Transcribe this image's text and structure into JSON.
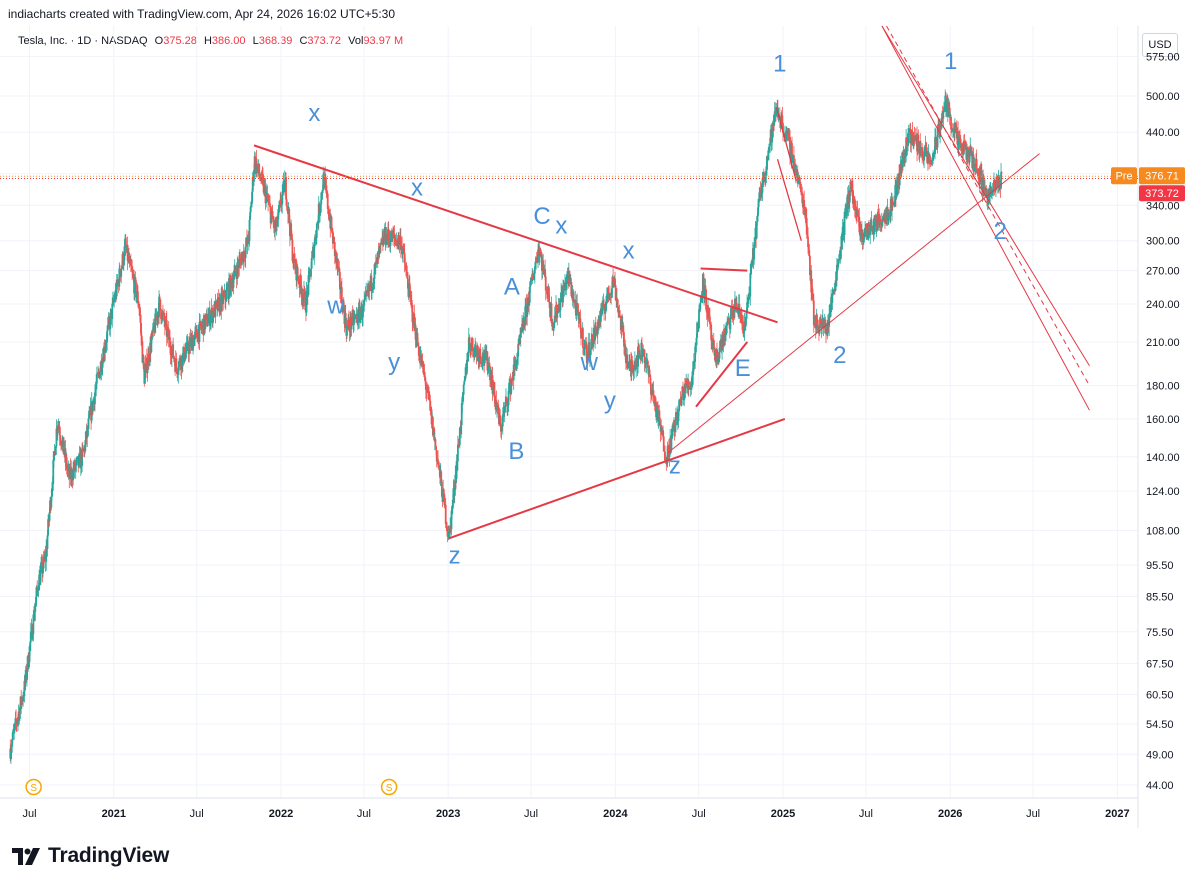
{
  "header": {
    "credit": "indiacharts created with TradingView.com, Apr 24, 2026 16:02 UTC+5:30",
    "symbol": "Tesla, Inc. · 1D · NASDAQ",
    "o_label": "O",
    "o_value": "375.28",
    "h_label": "H",
    "h_value": "386.00",
    "l_label": "L",
    "l_value": "368.39",
    "c_label": "C",
    "c_value": "373.72",
    "vol_label": "Vol",
    "vol_value": "93.97 M",
    "currency": "USD"
  },
  "brand": {
    "name": "TradingView",
    "logo_icon": "tradingview-logo-icon"
  },
  "colors": {
    "up": "#26a69a",
    "down": "#ef5350",
    "trendline": "#e53945",
    "label": "#4a90d9",
    "pre": "#f68a1f",
    "last": "#f23645"
  },
  "chart_data": {
    "type": "candlestick",
    "y_scale": "log",
    "ylim": [
      42,
      640
    ],
    "y_ticks": [
      "575.00",
      "500.00",
      "440.00",
      "380.00",
      "340.00",
      "300.00",
      "270.00",
      "240.00",
      "210.00",
      "180.00",
      "160.00",
      "140.00",
      "124.00",
      "108.00",
      "95.50",
      "85.50",
      "75.50",
      "67.50",
      "60.50",
      "54.50",
      "49.00",
      "44.00"
    ],
    "x_ticks": [
      "Jul",
      "2021",
      "Jul",
      "2022",
      "Jul",
      "2023",
      "Jul",
      "2024",
      "Jul",
      "2025",
      "Jul",
      "2026",
      "Jul",
      "2027"
    ],
    "price_tags": [
      {
        "label": "Pre",
        "value": "376.71"
      },
      {
        "label": "",
        "value": "373.72"
      }
    ],
    "price_path": [
      [
        "2020-05-20",
        50
      ],
      [
        "2020-06-20",
        62
      ],
      [
        "2020-07-20",
        90
      ],
      [
        "2020-08-05",
        98
      ],
      [
        "2020-08-31",
        160
      ],
      [
        "2020-09-25",
        130
      ],
      [
        "2020-10-25",
        140
      ],
      [
        "2020-11-20",
        175
      ],
      [
        "2020-12-20",
        220
      ],
      [
        "2021-01-26",
        293
      ],
      [
        "2021-02-25",
        240
      ],
      [
        "2021-03-08",
        185
      ],
      [
        "2021-04-10",
        240
      ],
      [
        "2021-05-18",
        192
      ],
      [
        "2021-06-20",
        210
      ],
      [
        "2021-07-30",
        230
      ],
      [
        "2021-08-31",
        245
      ],
      [
        "2021-10-22",
        300
      ],
      [
        "2021-11-04",
        400
      ],
      [
        "2021-11-25",
        360
      ],
      [
        "2021-12-20",
        310
      ],
      [
        "2022-01-10",
        370
      ],
      [
        "2022-01-28",
        280
      ],
      [
        "2022-02-24",
        240
      ],
      [
        "2022-04-04",
        375
      ],
      [
        "2022-04-28",
        290
      ],
      [
        "2022-05-24",
        220
      ],
      [
        "2022-06-30",
        235
      ],
      [
        "2022-08-15",
        305
      ],
      [
        "2022-09-20",
        300
      ],
      [
        "2022-10-20",
        220
      ],
      [
        "2022-11-20",
        170
      ],
      [
        "2023-01-03",
        105
      ],
      [
        "2023-02-15",
        210
      ],
      [
        "2023-03-30",
        195
      ],
      [
        "2023-04-25",
        155
      ],
      [
        "2023-06-01",
        200
      ],
      [
        "2023-07-18",
        295
      ],
      [
        "2023-08-18",
        225
      ],
      [
        "2023-09-20",
        265
      ],
      [
        "2023-10-31",
        200
      ],
      [
        "2023-12-28",
        262
      ],
      [
        "2024-01-30",
        190
      ],
      [
        "2024-03-01",
        205
      ],
      [
        "2024-04-22",
        140
      ],
      [
        "2024-05-30",
        178
      ],
      [
        "2024-06-15",
        182
      ],
      [
        "2024-07-10",
        262
      ],
      [
        "2024-08-05",
        195
      ],
      [
        "2024-09-20",
        240
      ],
      [
        "2024-10-10",
        220
      ],
      [
        "2024-11-11",
        350
      ],
      [
        "2024-12-18",
        480
      ],
      [
        "2025-01-20",
        410
      ],
      [
        "2025-02-20",
        330
      ],
      [
        "2025-03-10",
        225
      ],
      [
        "2025-04-08",
        221
      ],
      [
        "2025-05-28",
        365
      ],
      [
        "2025-06-20",
        305
      ],
      [
        "2025-07-25",
        320
      ],
      [
        "2025-08-28",
        340
      ],
      [
        "2025-10-03",
        440
      ],
      [
        "2025-11-20",
        395
      ],
      [
        "2025-12-22",
        488
      ],
      [
        "2026-01-20",
        420
      ],
      [
        "2026-02-20",
        400
      ],
      [
        "2026-03-25",
        350
      ],
      [
        "2026-04-24",
        374
      ]
    ],
    "annotations": [
      {
        "text": "x",
        "date": "2022-03-15",
        "price": 458
      },
      {
        "text": "w",
        "date": "2022-05-01",
        "price": 232
      },
      {
        "text": "x",
        "date": "2022-10-25",
        "price": 352
      },
      {
        "text": "y",
        "date": "2022-09-05",
        "price": 190
      },
      {
        "text": "z",
        "date": "2023-01-15",
        "price": 96
      },
      {
        "text": "A",
        "date": "2023-05-20",
        "price": 248
      },
      {
        "text": "B",
        "date": "2023-05-30",
        "price": 139
      },
      {
        "text": "C",
        "date": "2023-07-25",
        "price": 318
      },
      {
        "text": "x",
        "date": "2023-09-05",
        "price": 308
      },
      {
        "text": "w",
        "date": "2023-11-05",
        "price": 190
      },
      {
        "text": "y",
        "date": "2023-12-20",
        "price": 166
      },
      {
        "text": "x",
        "date": "2024-01-30",
        "price": 282
      },
      {
        "text": "z",
        "date": "2024-05-10",
        "price": 132
      },
      {
        "text": "E",
        "date": "2024-10-05",
        "price": 186
      },
      {
        "text": "1",
        "date": "2024-12-25",
        "price": 545
      },
      {
        "text": "2",
        "date": "2025-05-05",
        "price": 195
      },
      {
        "text": "1",
        "date": "2026-01-02",
        "price": 550
      },
      {
        "text": "2",
        "date": "2026-04-20",
        "price": 302
      }
    ],
    "trendlines": [
      {
        "name": "upper-triangle-line",
        "from": [
          "2021-11-03",
          420
        ],
        "to": [
          "2024-12-20",
          225
        ],
        "width": 2
      },
      {
        "name": "lower-triangle-line",
        "from": [
          "2023-01-03",
          105
        ],
        "to": [
          "2025-01-05",
          160
        ],
        "width": 2
      },
      {
        "name": "pennant-top",
        "from": [
          "2024-07-05",
          272
        ],
        "to": [
          "2024-10-15",
          270
        ],
        "width": 2
      },
      {
        "name": "pennant-bottom",
        "from": [
          "2024-06-25",
          167
        ],
        "to": [
          "2024-10-15",
          210
        ],
        "width": 2
      },
      {
        "name": "wedge-top",
        "from": [
          "2024-12-18",
          480
        ],
        "to": [
          "2025-01-30",
          370
        ],
        "width": 1.3
      },
      {
        "name": "wedge-bottom",
        "from": [
          "2024-12-20",
          400
        ],
        "to": [
          "2025-02-10",
          300
        ],
        "width": 1.3
      },
      {
        "name": "long-support",
        "from": [
          "2024-04-25",
          142
        ],
        "to": [
          "2026-07-15",
          408
        ],
        "width": 1
      },
      {
        "name": "channel-upper",
        "from": [
          "2025-08-05",
          640
        ],
        "to": [
          "2026-11-01",
          193
        ],
        "width": 1
      },
      {
        "name": "channel-mid",
        "from": [
          "2025-08-15",
          640
        ],
        "to": [
          "2026-11-01",
          180
        ],
        "width": 1,
        "dash": true
      },
      {
        "name": "channel-lower",
        "from": [
          "2025-08-05",
          640
        ],
        "to": [
          "2026-11-01",
          165
        ],
        "width": 1
      }
    ],
    "event_markers": [
      {
        "text": "S",
        "date": "2020-07-10"
      },
      {
        "text": "S",
        "date": "2022-08-25"
      }
    ]
  }
}
